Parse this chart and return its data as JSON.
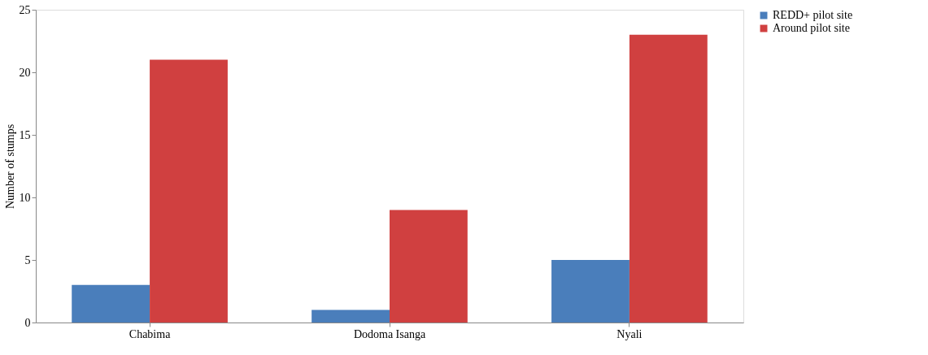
{
  "chart_data": {
    "type": "bar",
    "ylabel": "Number of stumps",
    "categories": [
      "Chabima",
      "Dodoma Isanga",
      "Nyali"
    ],
    "series": [
      {
        "name": "REDD+ pilot site",
        "color": "#4a7ebb",
        "values": [
          3,
          1,
          5
        ]
      },
      {
        "name": "Around pilot site",
        "color": "#d04040",
        "values": [
          21,
          9,
          23
        ]
      }
    ],
    "ylim": [
      0,
      25
    ],
    "yticks": [
      0,
      5,
      10,
      15,
      20,
      25
    ],
    "grid": false,
    "legend": "right"
  }
}
